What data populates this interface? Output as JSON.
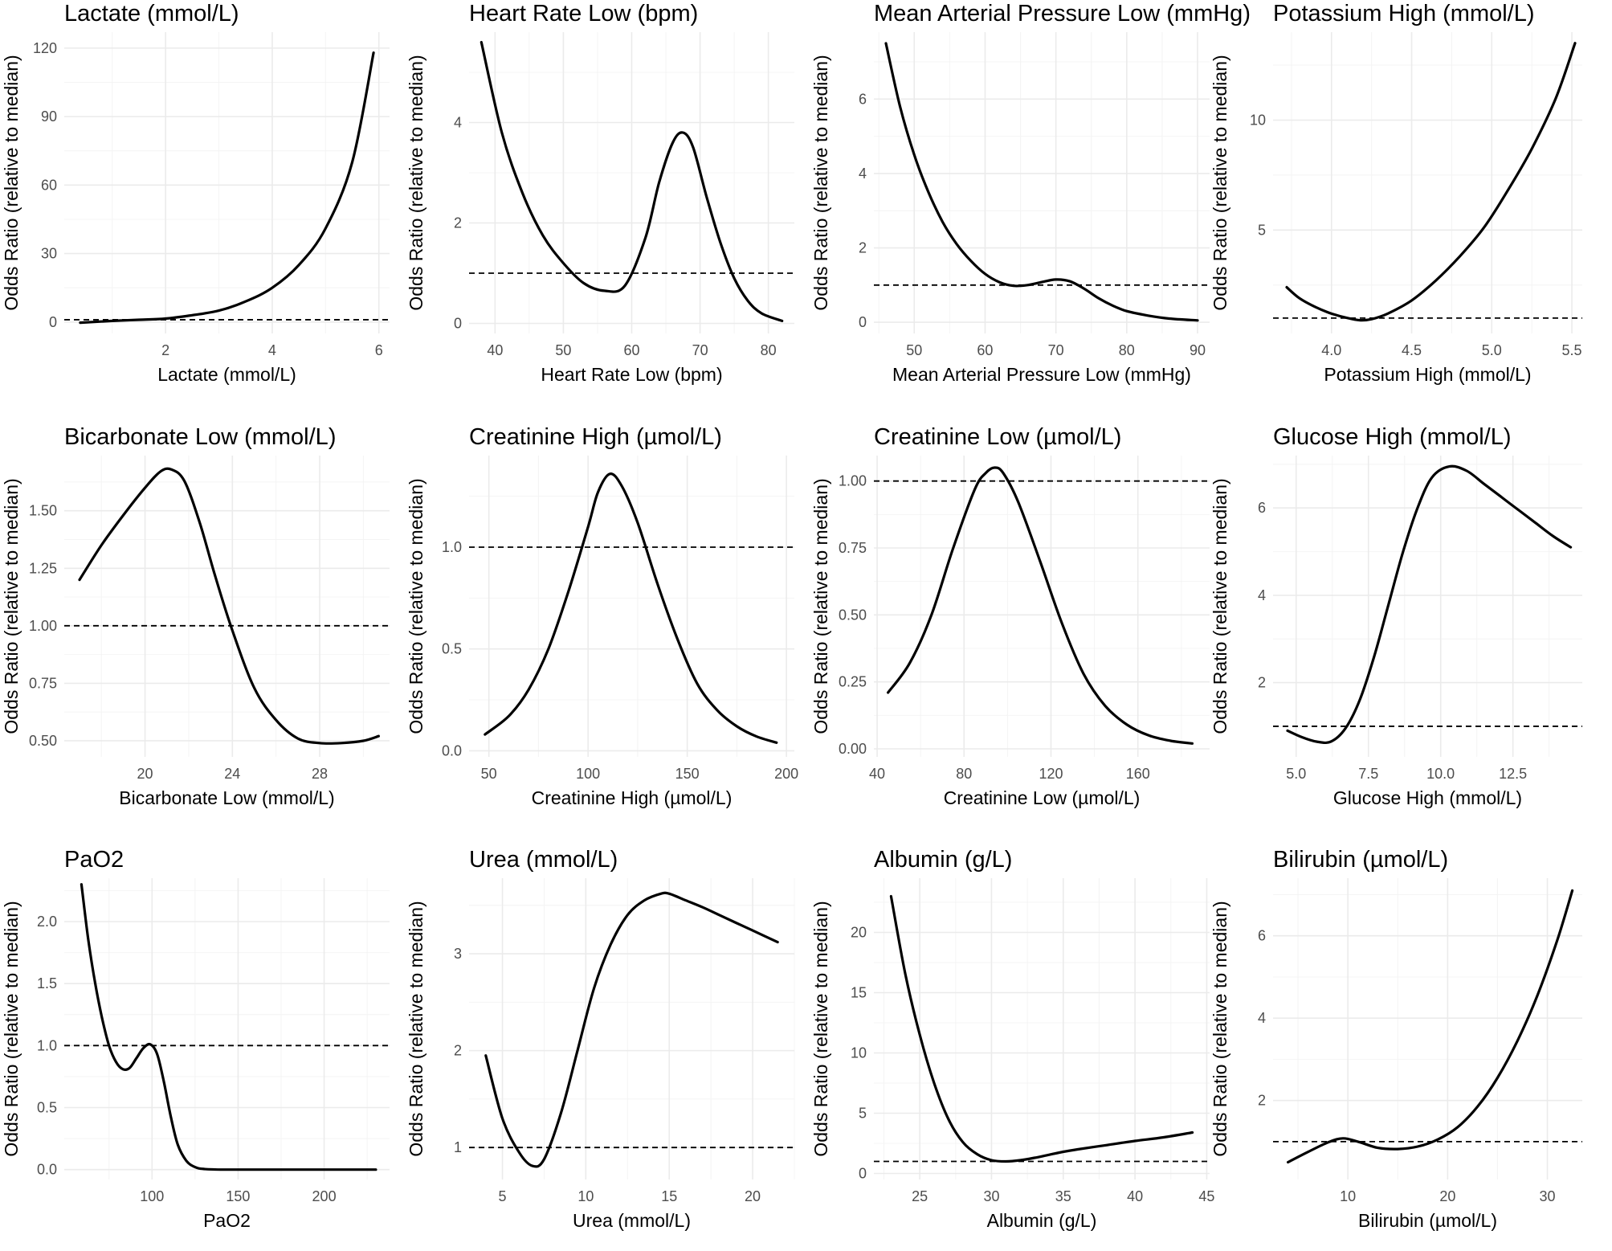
{
  "chart_data": [
    {
      "type": "line",
      "title": "Lactate (mmol/L)",
      "xlabel": "Lactate (mmol/L)",
      "ylabel": "Odds Ratio (relative to median)",
      "xlim": [
        0.1,
        6.2
      ],
      "ylim": [
        -5,
        127
      ],
      "xticks": [
        2,
        4,
        6
      ],
      "yticks": [
        0,
        30,
        60,
        90,
        120
      ],
      "ytick_labels": [
        "0",
        "30",
        "60",
        "90",
        "120"
      ],
      "reference_line": 1,
      "grid": true,
      "series": [
        {
          "x": [
            0.4,
            1.0,
            1.5,
            2.0,
            2.5,
            3.0,
            3.5,
            4.0,
            4.5,
            5.0,
            5.5,
            5.9
          ],
          "y": [
            -0.3,
            0.5,
            1.0,
            1.5,
            3.0,
            5.0,
            9.0,
            15.0,
            25.0,
            41.0,
            70.0,
            118.0
          ]
        }
      ]
    },
    {
      "type": "line",
      "title": "Heart Rate Low (bpm)",
      "xlabel": "Heart Rate Low (bpm)",
      "ylabel": "Odds Ratio (relative to median)",
      "xlim": [
        36.2,
        83.8
      ],
      "ylim": [
        -0.2,
        5.8
      ],
      "xticks": [
        40,
        50,
        60,
        70,
        80
      ],
      "yticks": [
        0,
        2,
        4
      ],
      "ytick_labels": [
        "0",
        "2",
        "4"
      ],
      "reference_line": 1,
      "grid": true,
      "series": [
        {
          "x": [
            38,
            41,
            44,
            47,
            50,
            53,
            56,
            59,
            62,
            64,
            66,
            67.5,
            69,
            71,
            73,
            75,
            77,
            79,
            82
          ],
          "y": [
            5.6,
            3.8,
            2.6,
            1.75,
            1.2,
            0.8,
            0.65,
            0.75,
            1.7,
            2.8,
            3.6,
            3.8,
            3.5,
            2.5,
            1.6,
            0.9,
            0.45,
            0.2,
            0.05
          ]
        }
      ]
    },
    {
      "type": "line",
      "title": "Mean Arterial Pressure Low (mmHg)",
      "xlabel": "Mean Arterial Pressure Low (mmHg)",
      "ylabel": "Odds Ratio (relative to median)",
      "xlim": [
        44.3,
        91.7
      ],
      "ylim": [
        -0.3,
        7.8
      ],
      "xticks": [
        50,
        60,
        70,
        80,
        90
      ],
      "yticks": [
        0,
        2,
        4,
        6
      ],
      "ytick_labels": [
        "0",
        "2",
        "4",
        "6"
      ],
      "reference_line": 1,
      "grid": true,
      "series": [
        {
          "x": [
            46,
            48,
            50,
            52,
            54,
            56,
            58,
            60,
            62,
            64,
            66,
            68,
            70,
            72,
            74,
            76,
            78,
            80,
            83,
            86,
            90
          ],
          "y": [
            7.5,
            5.8,
            4.5,
            3.5,
            2.7,
            2.1,
            1.65,
            1.3,
            1.08,
            0.98,
            1.0,
            1.08,
            1.15,
            1.1,
            0.9,
            0.65,
            0.45,
            0.3,
            0.18,
            0.1,
            0.05
          ]
        }
      ]
    },
    {
      "type": "line",
      "title": "Potassium High (mmol/L)",
      "xlabel": "Potassium High (mmol/L)",
      "ylabel": "Odds Ratio (relative to median)",
      "xlim": [
        3.635,
        5.565
      ],
      "ylim": [
        0.3,
        14.0
      ],
      "xticks": [
        4.0,
        4.5,
        5.0,
        5.5
      ],
      "xtick_labels": [
        "4.0",
        "4.5",
        "5.0",
        "5.5"
      ],
      "yticks": [
        5,
        10
      ],
      "ytick_labels": [
        "5",
        "10"
      ],
      "reference_line": 1,
      "grid": true,
      "series": [
        {
          "x": [
            3.72,
            3.8,
            3.9,
            4.0,
            4.1,
            4.18,
            4.25,
            4.35,
            4.5,
            4.65,
            4.8,
            4.95,
            5.1,
            5.25,
            5.4,
            5.52
          ],
          "y": [
            2.4,
            1.9,
            1.5,
            1.2,
            1.0,
            0.9,
            0.95,
            1.2,
            1.8,
            2.7,
            3.8,
            5.1,
            6.8,
            8.7,
            11.0,
            13.5
          ]
        }
      ]
    },
    {
      "type": "line",
      "title": "Bicarbonate Low (mmol/L)",
      "xlabel": "Bicarbonate Low (mmol/L)",
      "ylabel": "Odds Ratio (relative to median)",
      "xlim": [
        16.3,
        31.2
      ],
      "ylim": [
        0.43,
        1.74
      ],
      "xticks": [
        20,
        24,
        28
      ],
      "yticks": [
        0.5,
        0.75,
        1.0,
        1.25,
        1.5
      ],
      "ytick_labels": [
        "0.50",
        "0.75",
        "1.00",
        "1.25",
        "1.50"
      ],
      "reference_line": 1,
      "grid": true,
      "series": [
        {
          "x": [
            17,
            18,
            19,
            20,
            20.7,
            21.2,
            21.8,
            22.5,
            23.2,
            24,
            25,
            26,
            27,
            28,
            29,
            30,
            30.7
          ],
          "y": [
            1.2,
            1.35,
            1.48,
            1.6,
            1.67,
            1.68,
            1.63,
            1.45,
            1.22,
            0.98,
            0.73,
            0.59,
            0.51,
            0.49,
            0.49,
            0.5,
            0.52
          ]
        }
      ]
    },
    {
      "type": "line",
      "title": "Creatinine High (µmol/L)",
      "xlabel": "Creatinine High (µmol/L)",
      "ylabel": "Odds Ratio (relative to median)",
      "xlim": [
        40,
        204
      ],
      "ylim": [
        -0.03,
        1.45
      ],
      "xticks": [
        50,
        100,
        150,
        200
      ],
      "yticks": [
        0,
        0.5,
        1.0
      ],
      "ytick_labels": [
        "0.0",
        "0.5",
        "1.0"
      ],
      "reference_line": 1,
      "grid": true,
      "series": [
        {
          "x": [
            48,
            60,
            70,
            80,
            90,
            100,
            105,
            111,
            117,
            125,
            135,
            145,
            155,
            165,
            175,
            185,
            195
          ],
          "y": [
            0.08,
            0.17,
            0.3,
            0.5,
            0.78,
            1.1,
            1.27,
            1.36,
            1.3,
            1.12,
            0.82,
            0.55,
            0.33,
            0.2,
            0.12,
            0.07,
            0.04
          ]
        }
      ]
    },
    {
      "type": "line",
      "title": "Creatinine Low (µmol/L)",
      "xlabel": "Creatinine Low (µmol/L)",
      "ylabel": "Odds Ratio (relative to median)",
      "xlim": [
        38.5,
        193
      ],
      "ylim": [
        -0.03,
        1.095
      ],
      "xticks": [
        40,
        80,
        120,
        160
      ],
      "yticks": [
        0,
        0.25,
        0.5,
        0.75,
        1.0
      ],
      "ytick_labels": [
        "0.00",
        "0.25",
        "0.50",
        "0.75",
        "1.00"
      ],
      "reference_line": 1,
      "grid": true,
      "series": [
        {
          "x": [
            45,
            55,
            65,
            75,
            85,
            90,
            94,
            98,
            105,
            115,
            125,
            135,
            145,
            155,
            165,
            175,
            185
          ],
          "y": [
            0.21,
            0.32,
            0.5,
            0.75,
            0.97,
            1.03,
            1.05,
            1.03,
            0.92,
            0.7,
            0.47,
            0.28,
            0.16,
            0.09,
            0.05,
            0.03,
            0.02
          ]
        }
      ]
    },
    {
      "type": "line",
      "title": "Glucose High (mmol/L)",
      "xlabel": "Glucose High (mmol/L)",
      "ylabel": "Odds Ratio (relative to median)",
      "xlim": [
        4.2,
        14.9
      ],
      "ylim": [
        0.3,
        7.2
      ],
      "xticks": [
        5.0,
        7.5,
        10.0,
        12.5
      ],
      "xtick_labels": [
        "5.0",
        "7.5",
        "10.0",
        "12.5"
      ],
      "yticks": [
        2,
        4,
        6
      ],
      "ytick_labels": [
        "2",
        "4",
        "6"
      ],
      "reference_line": 1,
      "grid": true,
      "series": [
        {
          "x": [
            4.7,
            5.2,
            5.7,
            6.2,
            6.7,
            7.2,
            7.7,
            8.2,
            8.7,
            9.2,
            9.7,
            10.3,
            10.9,
            11.5,
            12.1,
            12.7,
            13.3,
            13.9,
            14.5
          ],
          "y": [
            0.9,
            0.75,
            0.65,
            0.65,
            0.95,
            1.6,
            2.6,
            3.8,
            5.0,
            6.0,
            6.7,
            6.95,
            6.85,
            6.55,
            6.25,
            5.95,
            5.65,
            5.35,
            5.1
          ]
        }
      ]
    },
    {
      "type": "line",
      "title": "PaO2",
      "xlabel": "PaO2",
      "ylabel": "Odds Ratio (relative to median)",
      "xlim": [
        49,
        238
      ],
      "ylim": [
        -0.08,
        2.35
      ],
      "xticks": [
        100,
        150,
        200
      ],
      "yticks": [
        0,
        0.5,
        1.0,
        1.5,
        2.0
      ],
      "ytick_labels": [
        "0.0",
        "0.5",
        "1.0",
        "1.5",
        "2.0"
      ],
      "reference_line": 1,
      "grid": true,
      "series": [
        {
          "x": [
            59,
            63,
            67,
            71,
            75,
            79,
            83,
            87,
            91,
            95,
            99,
            103,
            107,
            111,
            115,
            120,
            125,
            130,
            140,
            160,
            190,
            230
          ],
          "y": [
            2.3,
            1.85,
            1.5,
            1.22,
            1.0,
            0.87,
            0.81,
            0.82,
            0.9,
            0.98,
            1.01,
            0.93,
            0.7,
            0.42,
            0.2,
            0.07,
            0.02,
            0.005,
            0.0,
            0.0,
            0.0,
            0.0
          ]
        }
      ]
    },
    {
      "type": "line",
      "title": "Urea (mmol/L)",
      "xlabel": "Urea (mmol/L)",
      "ylabel": "Odds Ratio (relative to median)",
      "xlim": [
        3.0,
        22.5
      ],
      "ylim": [
        0.67,
        3.78
      ],
      "xticks": [
        5,
        10,
        15,
        20
      ],
      "yticks": [
        1,
        2,
        3
      ],
      "ytick_labels": [
        "1",
        "2",
        "3"
      ],
      "reference_line": 1,
      "grid": true,
      "series": [
        {
          "x": [
            4,
            5,
            6,
            6.8,
            7.5,
            8.5,
            9.5,
            10.5,
            11.5,
            12.5,
            13.5,
            14.5,
            15,
            16,
            17,
            18,
            19,
            20,
            21.5
          ],
          "y": [
            1.95,
            1.3,
            0.95,
            0.81,
            0.88,
            1.35,
            2.0,
            2.65,
            3.1,
            3.4,
            3.55,
            3.62,
            3.62,
            3.55,
            3.48,
            3.4,
            3.32,
            3.24,
            3.12
          ]
        }
      ]
    },
    {
      "type": "line",
      "title": "Albumin (g/L)",
      "xlabel": "Albumin (g/L)",
      "ylabel": "Odds Ratio (relative to median)",
      "xlim": [
        21.8,
        45.2
      ],
      "ylim": [
        -0.5,
        24.5
      ],
      "xticks": [
        25,
        30,
        35,
        40,
        45
      ],
      "yticks": [
        0,
        5,
        10,
        15,
        20
      ],
      "ytick_labels": [
        "0",
        "5",
        "10",
        "15",
        "20"
      ],
      "reference_line": 1,
      "grid": true,
      "series": [
        {
          "x": [
            23,
            24,
            25,
            26,
            27,
            28,
            29,
            30,
            31,
            32,
            33,
            34,
            35,
            36,
            38,
            40,
            42,
            44
          ],
          "y": [
            23.0,
            16.5,
            11.5,
            7.5,
            4.5,
            2.6,
            1.6,
            1.1,
            1.0,
            1.1,
            1.3,
            1.55,
            1.8,
            2.0,
            2.35,
            2.7,
            3.0,
            3.4
          ]
        }
      ]
    },
    {
      "type": "line",
      "title": "Bilirubin (µmol/L)",
      "xlabel": "Bilirubin (µmol/L)",
      "ylabel": "Odds Ratio (relative to median)",
      "xlim": [
        2.5,
        33.5
      ],
      "ylim": [
        0.08,
        7.4
      ],
      "xticks": [
        10,
        20,
        30
      ],
      "yticks": [
        2,
        4,
        6
      ],
      "ytick_labels": [
        "2",
        "4",
        "6"
      ],
      "reference_line": 1,
      "grid": true,
      "series": [
        {
          "x": [
            4,
            6,
            8,
            9.5,
            11,
            13,
            15,
            17,
            19,
            21,
            23,
            25,
            27,
            29,
            31,
            32.5
          ],
          "y": [
            0.5,
            0.75,
            0.98,
            1.08,
            1.0,
            0.85,
            0.82,
            0.88,
            1.05,
            1.35,
            1.85,
            2.55,
            3.45,
            4.55,
            5.9,
            7.1
          ]
        }
      ]
    }
  ]
}
